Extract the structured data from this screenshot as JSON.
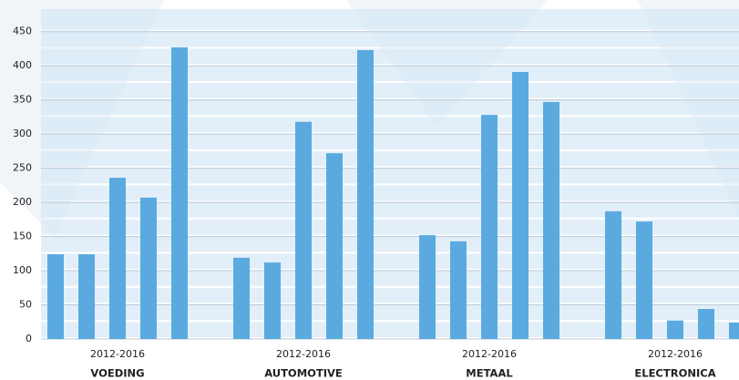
{
  "chart_data": {
    "type": "bar",
    "groups": [
      {
        "period": "2012-2016",
        "name": "VOEDING",
        "values": [
          124,
          124,
          236,
          207,
          427
        ]
      },
      {
        "period": "2012-2016",
        "name": "AUTOMOTIVE",
        "values": [
          119,
          112,
          318,
          272,
          423
        ]
      },
      {
        "period": "2012-2016",
        "name": "METAAL",
        "values": [
          152,
          143,
          328,
          391,
          347
        ]
      },
      {
        "period": "2012-2016",
        "name": "ELECTRONICA",
        "values": [
          187,
          172,
          27,
          44,
          24
        ]
      }
    ],
    "color": "#5aaae0",
    "ylim": [
      0,
      483
    ],
    "yticks": [
      0,
      50,
      100,
      150,
      200,
      250,
      300,
      350,
      400,
      450
    ],
    "grid": true
  }
}
